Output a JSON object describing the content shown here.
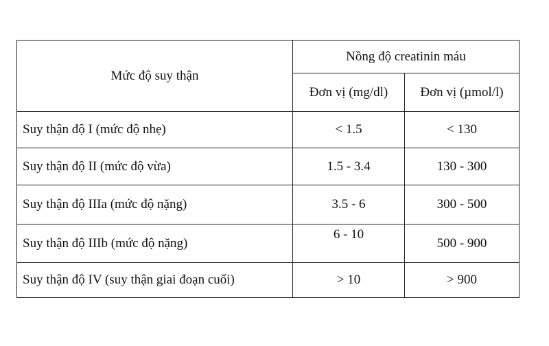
{
  "table": {
    "header": {
      "level": "Mức độ suy thận",
      "group": "Nồng độ creatinin máu",
      "unit_mgdl": "Đơn vị (mg/dl)",
      "unit_umol": "Đơn vị (µmol/l)"
    },
    "rows": [
      {
        "level": "Suy thận độ I (mức độ nhẹ)",
        "mgdl": "< 1.5",
        "umol": "< 130"
      },
      {
        "level": "Suy thận độ II (mức độ vừa)",
        "mgdl": "1.5 - 3.4",
        "umol": "130 - 300"
      },
      {
        "level": "Suy thận độ IIIa (mức độ nặng)",
        "mgdl": "3.5 - 6",
        "umol": "300 - 500"
      },
      {
        "level": "Suy thận độ IIIb (mức độ nặng)",
        "mgdl": "6 - 10",
        "umol": "500 - 900"
      },
      {
        "level": "Suy thận độ IV (suy thận giai đoạn cuối)",
        "mgdl": "> 10",
        "umol": "> 900"
      }
    ]
  }
}
